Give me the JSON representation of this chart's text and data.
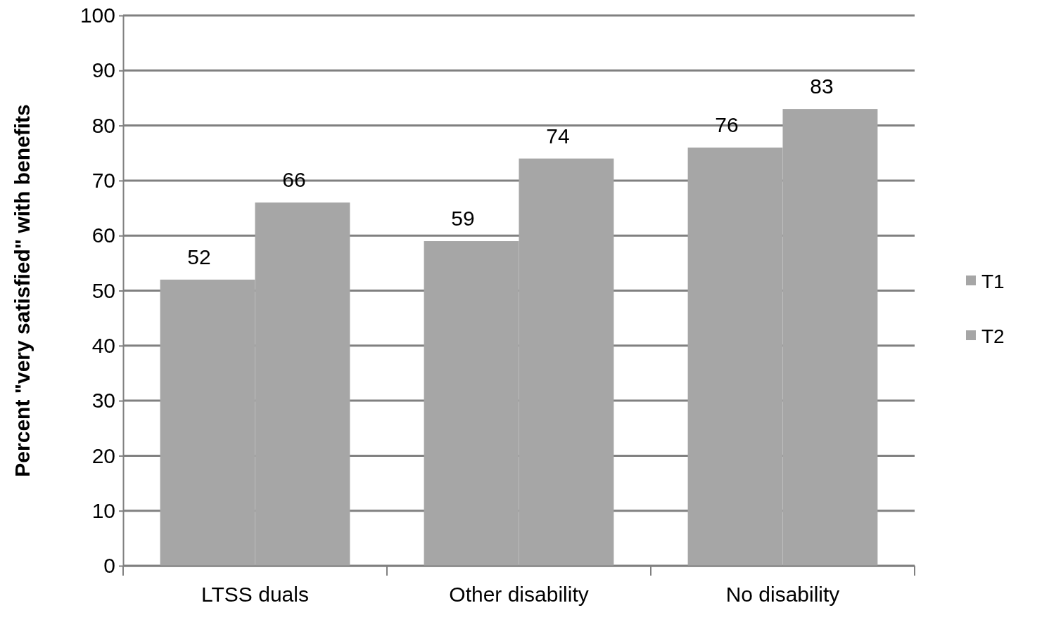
{
  "chart_data": {
    "type": "bar",
    "ylabel": "Percent \"very satisfied\" with benefits",
    "categories": [
      "LTSS duals",
      "Other disability",
      "No disability"
    ],
    "series": [
      {
        "name": "T1",
        "color": "#a6a6a6",
        "values": [
          52,
          59,
          76
        ]
      },
      {
        "name": "T2",
        "color": "#a6a6a6",
        "values": [
          66,
          74,
          83
        ]
      }
    ],
    "ylim": [
      0,
      100
    ],
    "yticks": [
      0,
      10,
      20,
      30,
      40,
      50,
      60,
      70,
      80,
      90,
      100
    ],
    "grid": "y",
    "legend": "right",
    "data_labels": true
  }
}
